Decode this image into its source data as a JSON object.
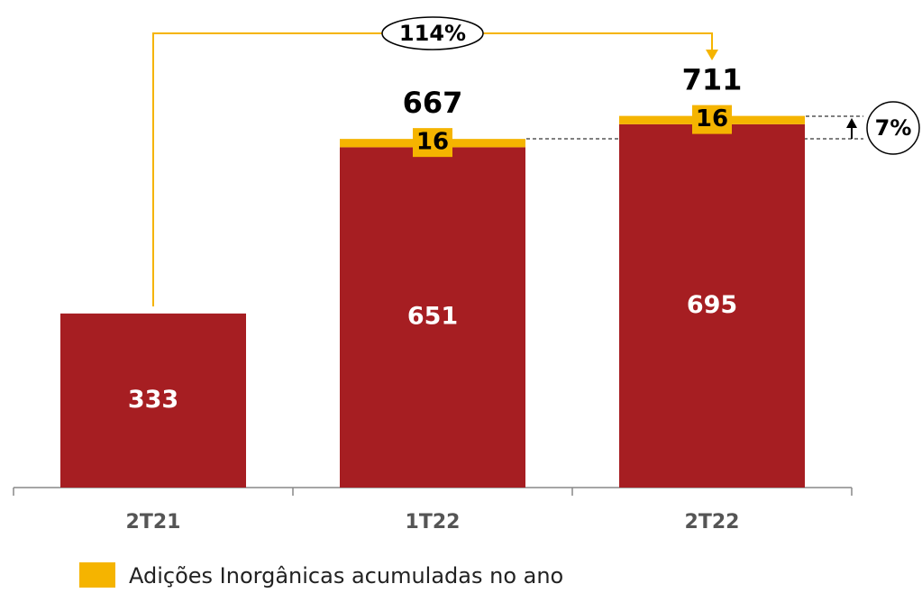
{
  "chart_data": {
    "type": "stacked_bar",
    "categories": [
      "2T21",
      "1T22",
      "2T22"
    ],
    "series": [
      {
        "color": "#a61e22",
        "values": [
          333,
          651,
          695
        ]
      },
      {
        "name": "Adições Inorgânicas acumuladas no ano",
        "color": "#f5b400",
        "values": [
          null,
          16,
          16
        ]
      }
    ],
    "totals": [
      null,
      667,
      711
    ],
    "annotations": [
      "114%",
      "7%"
    ]
  }
}
